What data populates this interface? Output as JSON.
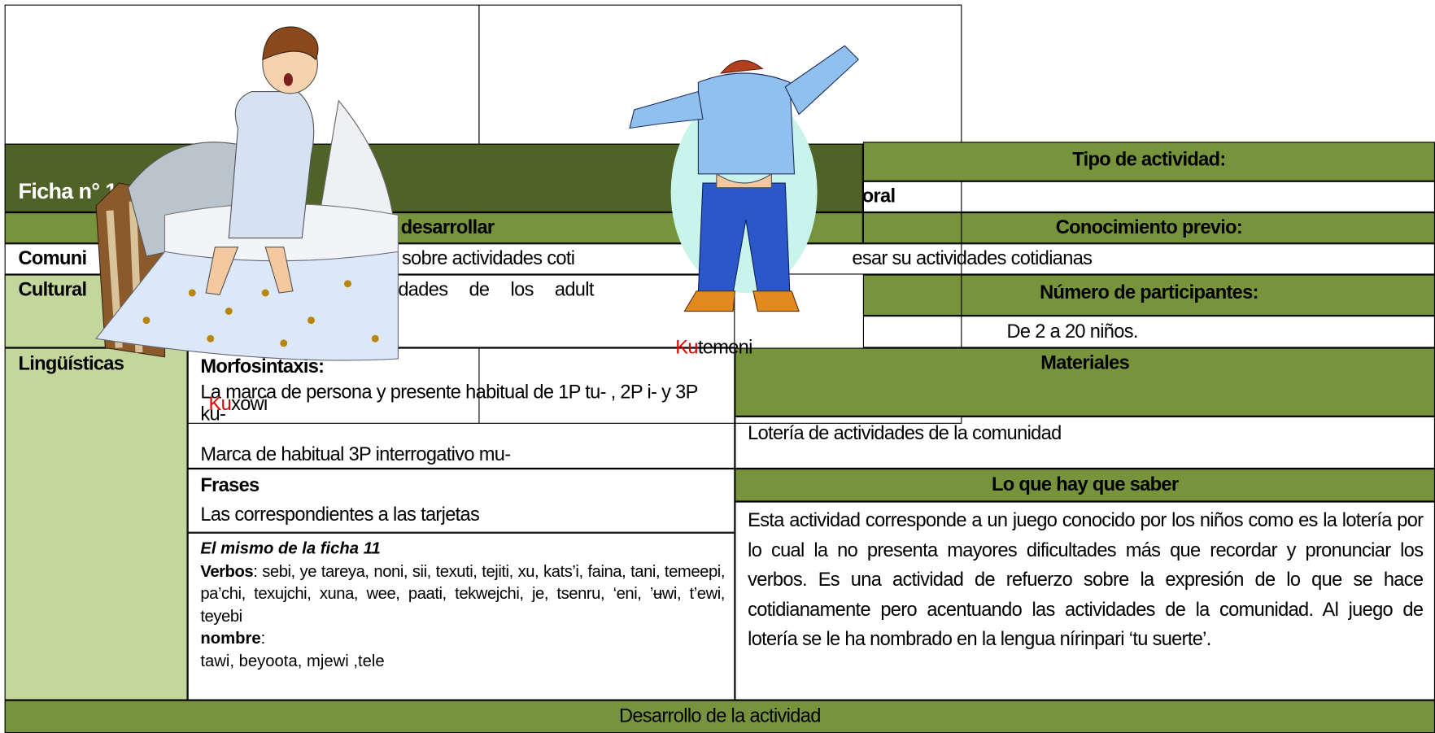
{
  "header": {
    "ficha": "Ficha n° 1",
    "desarrollar": "desarrollar",
    "oral": "oral"
  },
  "left": {
    "comunicativa_label": "Comuni",
    "comunicativa_text": "s sobre actividades coti",
    "comunicativa_tail": "esar su actividades cotidianas",
    "cultural_label": "Cultural",
    "cultural_text": "vidades de los adult",
    "linguisticas_label": "Lingüísticas"
  },
  "morfo": {
    "title": "Morfosintaxis:",
    "line1": "La marca de persona y presente habitual de 1P tu- , 2P i- y 3P ku-",
    "line2": "Marca de habitual 3P interrogativo mu-"
  },
  "frases": {
    "title": "Frases",
    "text": "Las correspondientes a las tarjetas"
  },
  "vocab": {
    "note": "El mismo de la ficha 11",
    "verbos_label": "Verbos",
    "verbos_text": ": sebi, ye tareya, noni, sii, texuti, tejiti, xu, kats’i, faina,  tani, temeepi, pa’chi, texujchi, xuna, wee, paati, tekwejchi, je, tsenru, ‘eni, ’ʉwi, t’ewi, teyebi",
    "nombre_label": "nombre",
    "nombre_text": ":",
    "nombres": "tawi, beyoota, mjewi ,tele"
  },
  "right": {
    "tipo": "Tipo de actividad:",
    "conocimiento": "Conocimiento previo:",
    "participantes": "Número de participantes:",
    "participantes_text": "De 2 a 20 niños.",
    "materiales": "Materiales",
    "materiales_text": "Lotería de actividades de la comunidad",
    "saber": "Lo que hay que saber",
    "saber_text": "Esta actividad corresponde a un juego conocido por los niños como es la lotería por lo cual la no presenta mayores dificultades más que recordar y pronunciar los verbos. Es una actividad de refuerzo sobre la expresión de lo que se hace cotidianamente pero acentuando las actividades de la comunidad. Al juego de lotería se le ha nombrado en la lengua nírinpari ‘tu suerte’."
  },
  "captions": {
    "ku1": "Ku",
    "word1": "xowi",
    "ku2": "Ku",
    "word2": "temeni"
  },
  "footer": "Desarrollo de la actividad"
}
